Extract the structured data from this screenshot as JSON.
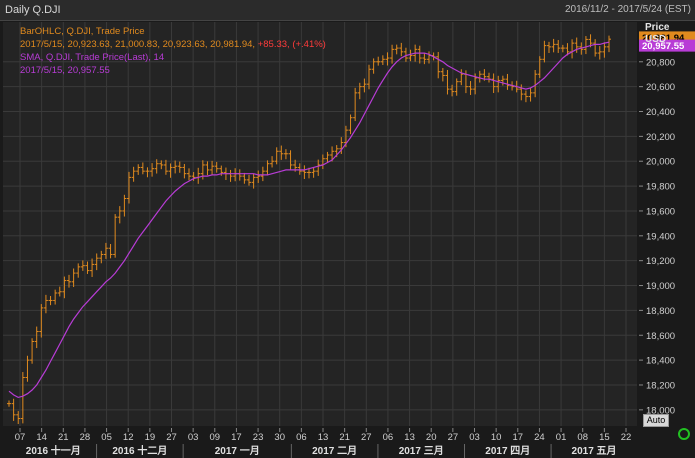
{
  "window": {
    "title": "Daily Q.DJI",
    "date_range": "2016/11/2 - 2017/5/24 (EST)"
  },
  "legend": {
    "line1": "BarOHLC, Q.DJI, Trade Price",
    "line2_prefix": "2017/5/15, 20,923.63, 21,000.83, 20,923.63, 20,981.94, ",
    "line2_change": "+85.33, (+.41%)",
    "line3": "SMA, Q.DJI, Trade Price(Last),  14",
    "line4": "2017/5/15, 20,957.55"
  },
  "axis_header": {
    "price": "Price",
    "unit": "USD"
  },
  "price_tags": {
    "last": "20,981.94",
    "sma": "20,957.55"
  },
  "auto_label": "Auto",
  "colors": {
    "bars": "#e08a1e",
    "sma": "#b83cd6",
    "positive": "#ff3b3b",
    "background": "#242424",
    "grid": "#3a3a3a",
    "text": "#c8c8c8"
  },
  "chart_data": {
    "type": "line",
    "title": "Daily Q.DJI",
    "ylabel": "Price USD",
    "ylim": [
      17870,
      21120
    ],
    "y_ticks": [
      {
        "v": 18000,
        "label": "18,000"
      },
      {
        "v": 18200,
        "label": "18,200"
      },
      {
        "v": 18400,
        "label": "18,400"
      },
      {
        "v": 18600,
        "label": "18,600"
      },
      {
        "v": 18800,
        "label": "18,800"
      },
      {
        "v": 19000,
        "label": "19,000"
      },
      {
        "v": 19200,
        "label": "19,200"
      },
      {
        "v": 19400,
        "label": "19,400"
      },
      {
        "v": 19600,
        "label": "19,600"
      },
      {
        "v": 19800,
        "label": "19,800"
      },
      {
        "v": 20000,
        "label": "20,000"
      },
      {
        "v": 20200,
        "label": "20,200"
      },
      {
        "v": 20400,
        "label": "20,400"
      },
      {
        "v": 20600,
        "label": "20,600"
      },
      {
        "v": 20800,
        "label": "20,800"
      }
    ],
    "x_ticks": [
      "07",
      "14",
      "21",
      "28",
      "05",
      "12",
      "19",
      "27",
      "03",
      "09",
      "17",
      "23",
      "30",
      "06",
      "13",
      "21",
      "27",
      "06",
      "13",
      "20",
      "27",
      "03",
      "10",
      "17",
      "24",
      "01",
      "08",
      "15",
      "22"
    ],
    "month_labels": [
      "2016 十一月",
      "2016 十二月",
      "2017 一月",
      "2017 二月",
      "2017 三月",
      "2017 四月",
      "2017 五月"
    ],
    "series": [
      {
        "name": "BarOHLC, Q.DJI, Trade Price",
        "kind": "ohlc",
        "close": [
          18050,
          17960,
          17930,
          18260,
          18400,
          18550,
          18630,
          18820,
          18880,
          18880,
          18940,
          18950,
          19040,
          19030,
          19100,
          19150,
          19160,
          19120,
          19170,
          19220,
          19250,
          19300,
          19250,
          19550,
          19600,
          19700,
          19870,
          19920,
          19950,
          19920,
          19920,
          19940,
          19980,
          19970,
          19920,
          19950,
          19960,
          19950,
          19900,
          19880,
          19870,
          19900,
          19970,
          19930,
          19960,
          19940,
          19910,
          19900,
          19880,
          19900,
          19880,
          19850,
          19830,
          19870,
          19880,
          19920,
          19980,
          20000,
          20080,
          20060,
          20060,
          19970,
          19950,
          19920,
          19910,
          19910,
          19920,
          19970,
          20020,
          20050,
          20080,
          20100,
          20150,
          20250,
          20350,
          20550,
          20600,
          20620,
          20740,
          20800,
          20800,
          20820,
          20830,
          20900,
          20910,
          20880,
          20830,
          20850,
          20900,
          20830,
          20820,
          20850,
          20840,
          20720,
          20690,
          20580,
          20560,
          20640,
          20700,
          20600,
          20580,
          20670,
          20700,
          20680,
          20660,
          20600,
          20650,
          20660,
          20610,
          20600,
          20580,
          20540,
          20520,
          20550,
          20700,
          20820,
          20930,
          20920,
          20940,
          20910,
          20910,
          20880,
          20950,
          20920,
          20900,
          20980,
          20950,
          20870,
          20880,
          20920,
          20981.94
        ]
      },
      {
        "name": "SMA, Q.DJI, Trade Price(Last),  14",
        "kind": "line",
        "values": [
          18150,
          18120,
          18100,
          18110,
          18130,
          18160,
          18200,
          18260,
          18320,
          18390,
          18460,
          18530,
          18600,
          18670,
          18730,
          18780,
          18830,
          18870,
          18910,
          18950,
          18990,
          19030,
          19060,
          19100,
          19150,
          19200,
          19260,
          19320,
          19380,
          19430,
          19480,
          19530,
          19580,
          19630,
          19680,
          19720,
          19760,
          19790,
          19820,
          19840,
          19860,
          19870,
          19880,
          19880,
          19890,
          19890,
          19900,
          19900,
          19900,
          19900,
          19900,
          19900,
          19900,
          19900,
          19890,
          19890,
          19890,
          19900,
          19910,
          19920,
          19930,
          19930,
          19930,
          19930,
          19930,
          19940,
          19950,
          19960,
          19970,
          19990,
          20010,
          20050,
          20090,
          20140,
          20190,
          20250,
          20310,
          20380,
          20450,
          20520,
          20590,
          20650,
          20710,
          20760,
          20800,
          20830,
          20850,
          20860,
          20870,
          20870,
          20870,
          20860,
          20840,
          20820,
          20800,
          20770,
          20750,
          20730,
          20710,
          20700,
          20690,
          20680,
          20670,
          20660,
          20660,
          20650,
          20640,
          20630,
          20620,
          20610,
          20600,
          20590,
          20580,
          20590,
          20610,
          20640,
          20670,
          20710,
          20750,
          20790,
          20830,
          20860,
          20880,
          20900,
          20910,
          20920,
          20930,
          20940,
          20940,
          20950,
          20957.55
        ]
      }
    ]
  }
}
